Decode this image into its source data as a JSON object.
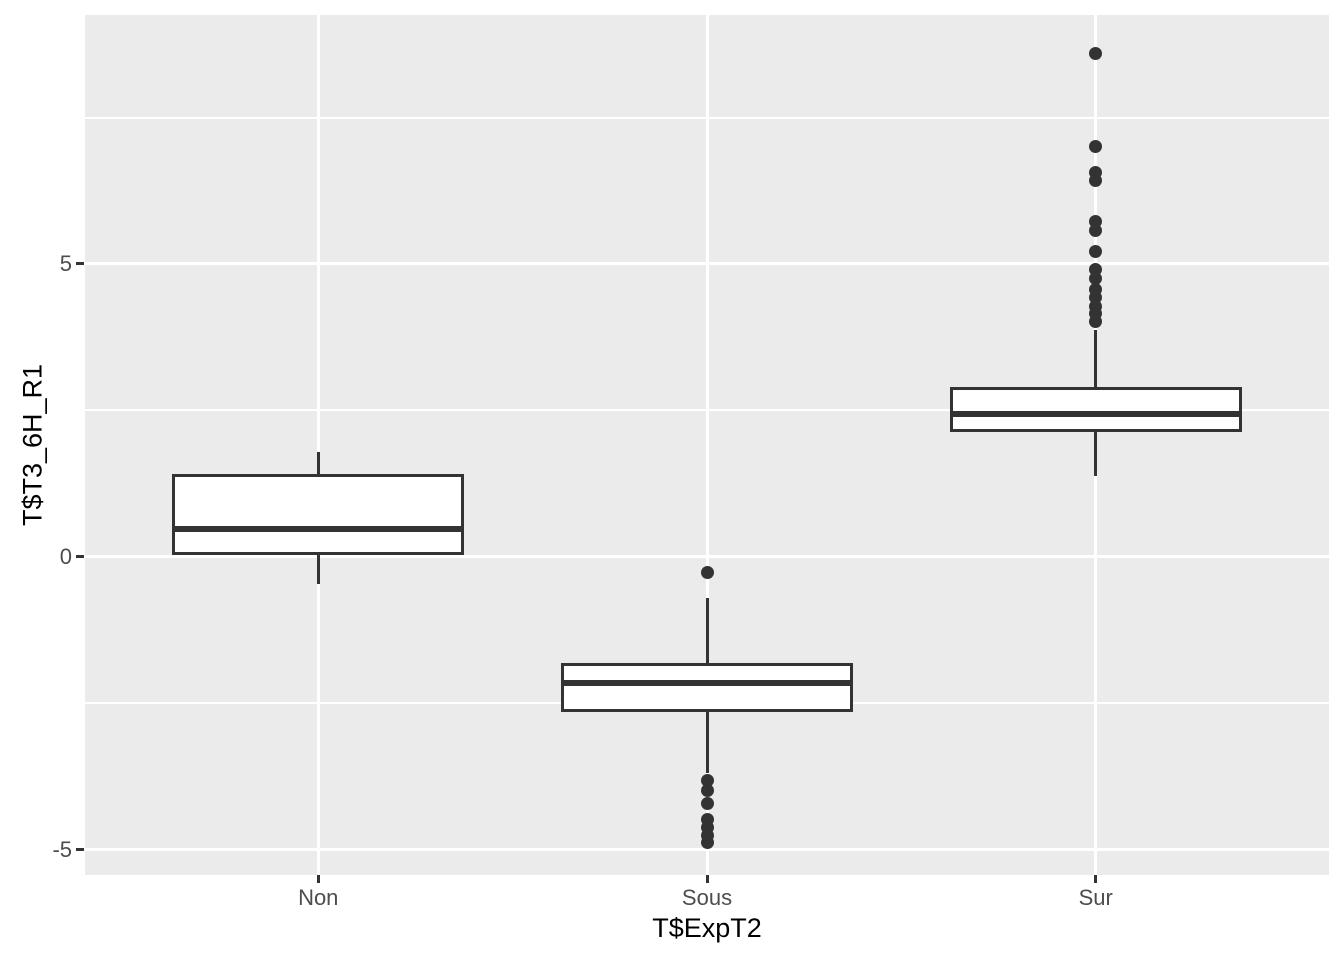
{
  "chart_data": {
    "type": "boxplot",
    "title": "",
    "xlabel": "T$ExpT2",
    "ylabel": "T$T3_6H_R1",
    "categories": [
      "Non",
      "Sous",
      "Sur"
    ],
    "y_ticks": [
      5,
      0,
      -5
    ],
    "y_tick_labels": [
      "5",
      "0",
      "-5"
    ],
    "y_minor_ticks": [
      7.5,
      2.5,
      -2.5
    ],
    "ylim": [
      -5.43,
      9.25
    ],
    "x_domain_expansion": 0.6,
    "box_width_units": 0.75,
    "grid": "major-and-minor-horizontal, major-vertical",
    "legend": "none",
    "series": [
      {
        "category": "Non",
        "whisker_low": -0.46,
        "q1": 0.03,
        "median": 0.48,
        "q3": 1.42,
        "whisker_high": 1.79,
        "outliers": []
      },
      {
        "category": "Sous",
        "whisker_low": -3.69,
        "q1": -2.64,
        "median": -2.15,
        "q3": -1.81,
        "whisker_high": -0.7,
        "outliers": [
          -0.26,
          -3.82,
          -3.99,
          -4.21,
          -4.49,
          -4.62,
          -4.76,
          -4.88
        ]
      },
      {
        "category": "Sur",
        "whisker_low": 1.38,
        "q1": 2.13,
        "median": 2.44,
        "q3": 2.9,
        "whisker_high": 3.87,
        "outliers": [
          8.6,
          7.01,
          6.57,
          6.42,
          5.72,
          5.58,
          5.22,
          4.9,
          4.76,
          4.56,
          4.42,
          4.28,
          4.15,
          4.01
        ]
      }
    ],
    "colors": {
      "panel_background": "#EBEBEB",
      "gridline": "#FFFFFF",
      "box_stroke": "#333333",
      "box_fill": "#FFFFFF",
      "outlier": "#333333",
      "tick_label": "#4D4D4D",
      "axis_title": "#000000",
      "page_background": "#FFFFFF"
    }
  }
}
